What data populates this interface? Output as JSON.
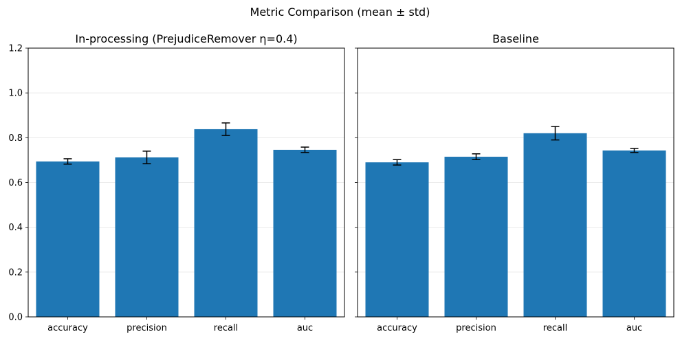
{
  "figure": {
    "suptitle": "Metric Comparison (mean ± std)"
  },
  "chart_data": [
    {
      "type": "bar",
      "title": "In-processing (PrejudiceRemover η=0.4)",
      "categories": [
        "accuracy",
        "precision",
        "recall",
        "auc"
      ],
      "values": [
        0.694,
        0.712,
        0.838,
        0.746
      ],
      "errors": [
        0.012,
        0.028,
        0.028,
        0.012
      ],
      "ylim": [
        0,
        1.2
      ],
      "yticks": [
        "0.0",
        "0.2",
        "0.4",
        "0.6",
        "0.8",
        "1.0",
        "1.2"
      ],
      "ytick_values": [
        0,
        0.2,
        0.4,
        0.6,
        0.8,
        1.0,
        1.2
      ],
      "grid": "y",
      "bar_color": "#1f77b4"
    },
    {
      "type": "bar",
      "title": "Baseline",
      "categories": [
        "accuracy",
        "precision",
        "recall",
        "auc"
      ],
      "values": [
        0.69,
        0.715,
        0.82,
        0.743
      ],
      "errors": [
        0.012,
        0.013,
        0.03,
        0.009
      ],
      "ylim": [
        0,
        1.2
      ],
      "ytick_values": [
        0,
        0.2,
        0.4,
        0.6,
        0.8,
        1.0,
        1.2
      ],
      "grid": "y",
      "bar_color": "#1f77b4"
    }
  ]
}
